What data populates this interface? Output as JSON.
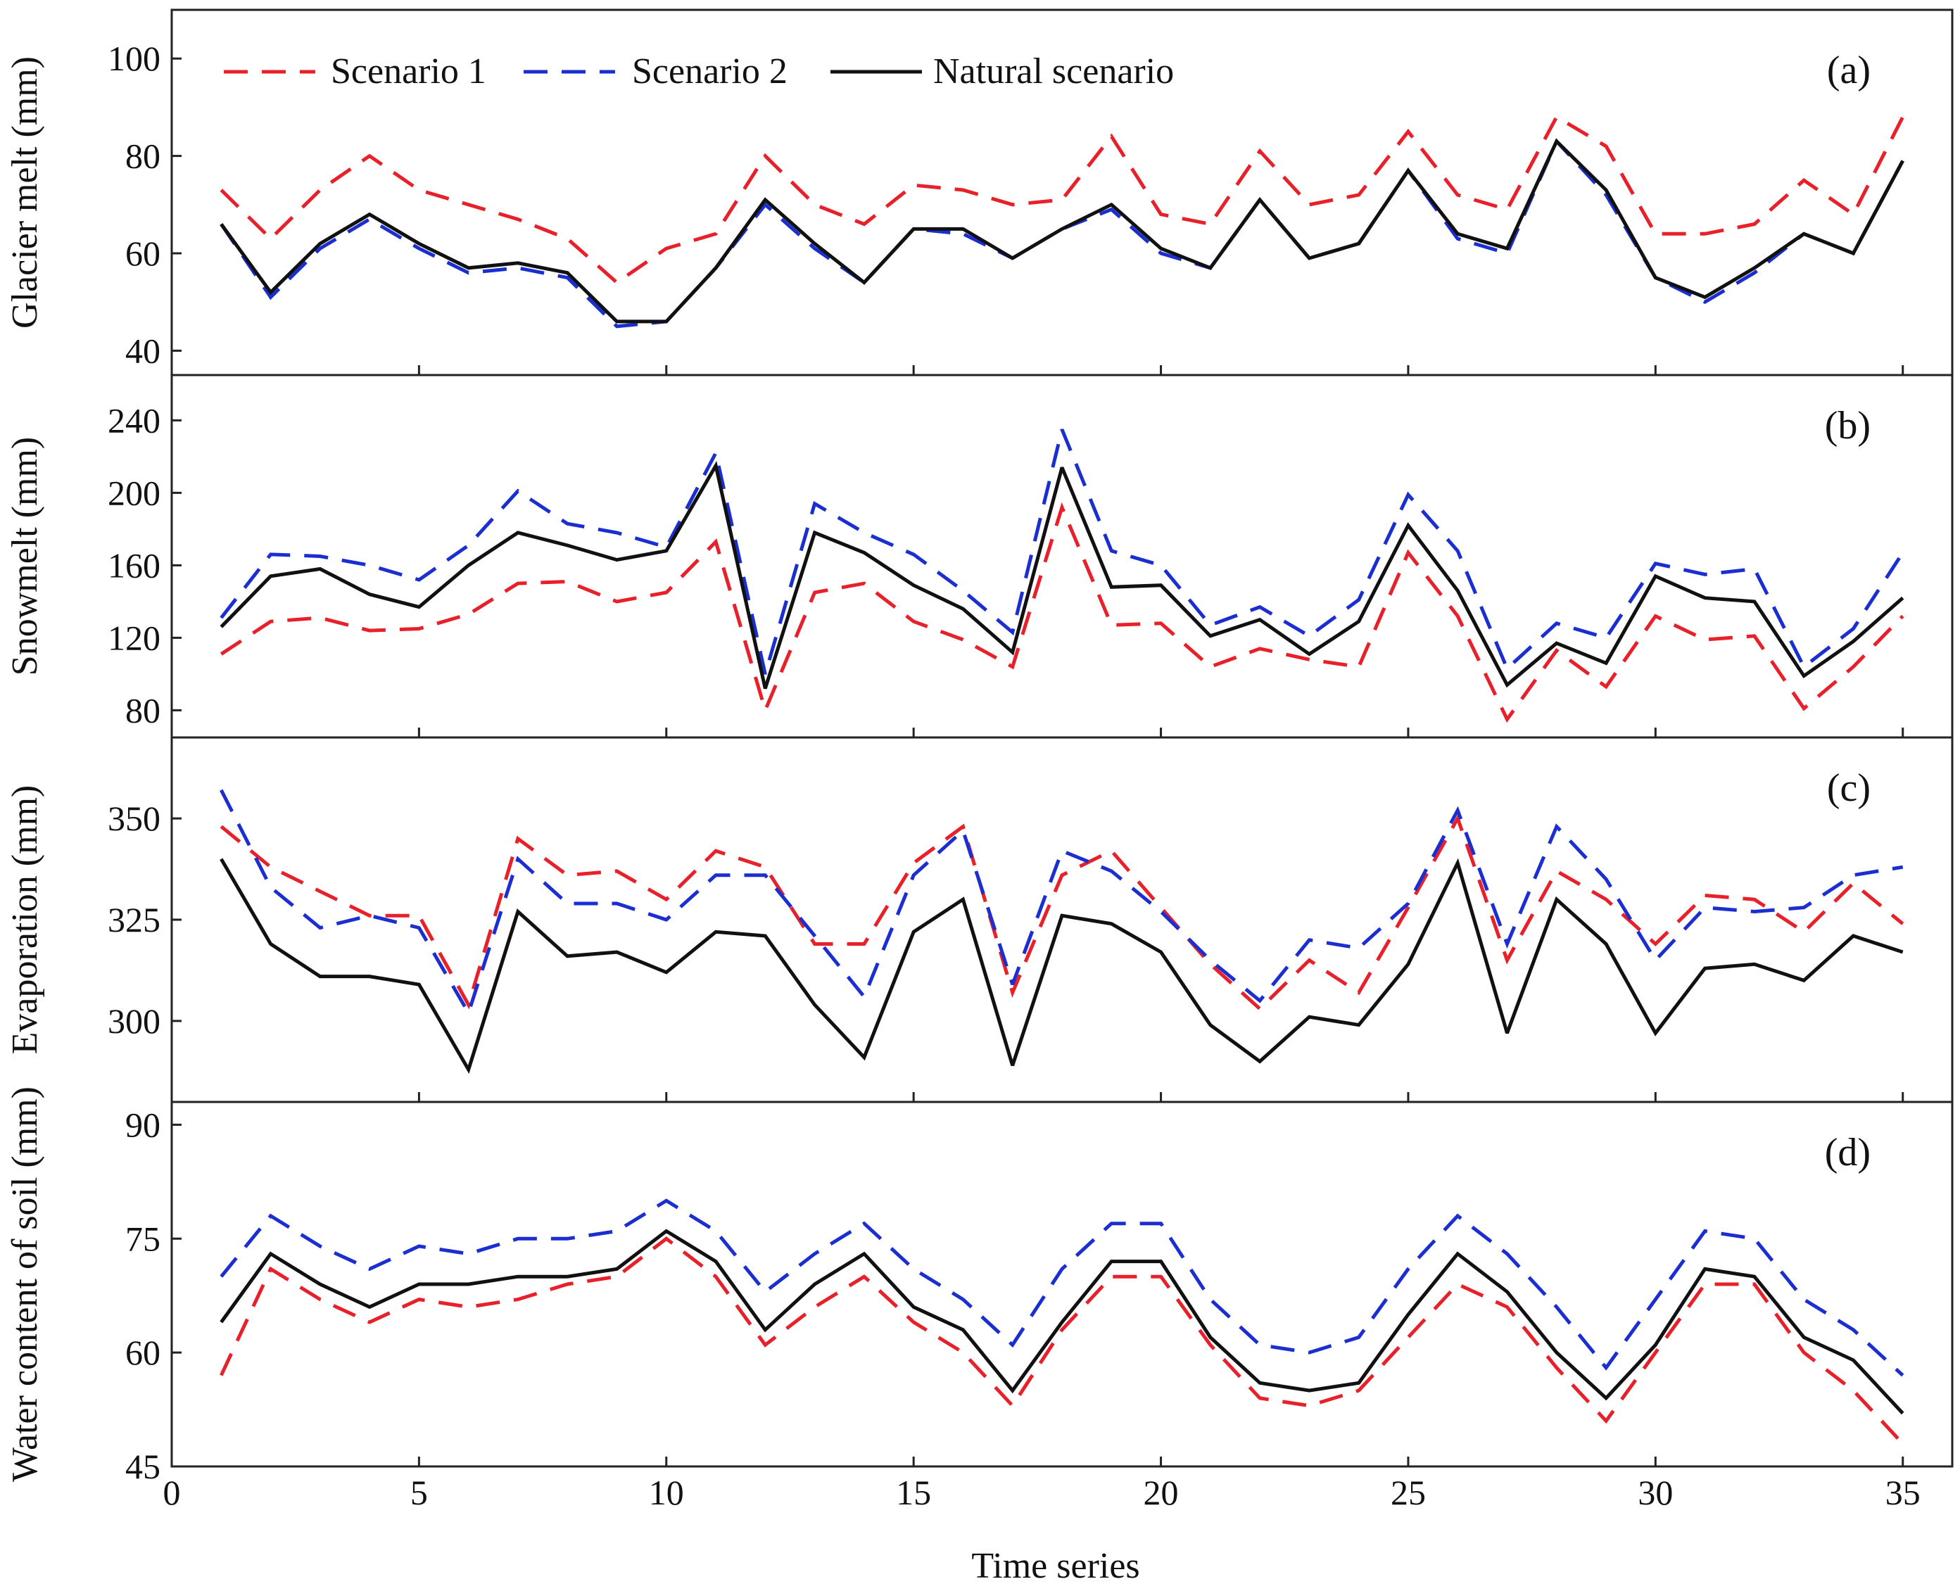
{
  "colors": {
    "scenario1": "#e8202a",
    "scenario2": "#1b2fd1",
    "natural": "#111111",
    "axis": "#222222"
  },
  "legend": {
    "items": [
      "Scenario 1",
      "Scenario 2",
      "Natural scenario"
    ]
  },
  "chart_data": {
    "type": "line",
    "xlabel": "Time series",
    "xlim": [
      0,
      36
    ],
    "xticks": [
      0,
      5,
      10,
      15,
      20,
      25,
      30,
      35
    ],
    "x": [
      1,
      2,
      3,
      4,
      5,
      6,
      7,
      8,
      9,
      10,
      11,
      12,
      13,
      14,
      15,
      16,
      17,
      18,
      19,
      20,
      21,
      22,
      23,
      24,
      25,
      26,
      27,
      28,
      29,
      30,
      31,
      32,
      33,
      34,
      35
    ],
    "panels": [
      {
        "label": "(a)",
        "ylabel": "Glacier melt (mm)",
        "ylim": [
          35,
          110
        ],
        "yticks": [
          40,
          60,
          80,
          100
        ],
        "series": [
          {
            "name": "Scenario 1",
            "style": "dashed",
            "values": [
              73,
              63,
              73,
              80,
              73,
              70,
              67,
              63,
              54,
              61,
              64,
              80,
              70,
              66,
              74,
              73,
              70,
              71,
              84,
              68,
              66,
              81,
              70,
              72,
              85,
              72,
              69,
              88,
              82,
              64,
              64,
              66,
              75,
              68,
              88
            ]
          },
          {
            "name": "Scenario 2",
            "style": "dashed",
            "values": [
              66,
              51,
              61,
              67,
              61,
              56,
              57,
              55,
              45,
              46,
              57,
              70,
              61,
              54,
              65,
              64,
              59,
              65,
              69,
              60,
              57,
              71,
              59,
              62,
              77,
              63,
              60,
              83,
              72,
              55,
              50,
              56,
              64,
              60,
              79
            ]
          },
          {
            "name": "Natural scenario",
            "style": "solid",
            "values": [
              66,
              52,
              62,
              68,
              62,
              57,
              58,
              56,
              46,
              46,
              57,
              71,
              62,
              54,
              65,
              65,
              59,
              65,
              70,
              61,
              57,
              71,
              59,
              62,
              77,
              64,
              61,
              83,
              73,
              55,
              51,
              57,
              64,
              60,
              79
            ]
          }
        ]
      },
      {
        "label": "(b)",
        "ylabel": "Snowmelt (mm)",
        "ylim": [
          65,
          265
        ],
        "yticks": [
          80,
          120,
          160,
          200,
          240
        ],
        "series": [
          {
            "name": "Scenario 1",
            "style": "dashed",
            "values": [
              111,
              129,
              131,
              124,
              125,
              133,
              150,
              151,
              140,
              145,
              173,
              80,
              145,
              150,
              129,
              119,
              104,
              192,
              127,
              128,
              104,
              114,
              108,
              104,
              167,
              132,
              75,
              113,
              93,
              132,
              119,
              121,
              81,
              104,
              132
            ]
          },
          {
            "name": "Scenario 2",
            "style": "dashed",
            "values": [
              131,
              166,
              165,
              160,
              152,
              171,
              201,
              183,
              178,
              170,
              222,
              100,
              194,
              178,
              166,
              146,
              123,
              235,
              168,
              160,
              127,
              137,
              121,
              141,
              199,
              168,
              103,
              128,
              120,
              161,
              155,
              158,
              104,
              125,
              167
            ]
          },
          {
            "name": "Natural scenario",
            "style": "solid",
            "values": [
              126,
              154,
              158,
              144,
              137,
              160,
              178,
              171,
              163,
              168,
              215,
              92,
              178,
              167,
              149,
              136,
              112,
              214,
              148,
              149,
              121,
              130,
              111,
              129,
              182,
              146,
              94,
              117,
              106,
              154,
              142,
              140,
              99,
              118,
              142
            ]
          }
        ]
      },
      {
        "label": "(c)",
        "ylabel": "Evaporation (mm)",
        "ylim": [
          280,
          370
        ],
        "yticks": [
          300,
          325,
          350
        ],
        "series": [
          {
            "name": "Scenario 1",
            "style": "dashed",
            "values": [
              348,
              338,
              332,
              326,
              326,
              304,
              345,
              336,
              337,
              330,
              342,
              338,
              319,
              319,
              339,
              348,
              307,
              336,
              342,
              328,
              314,
              303,
              315,
              307,
              328,
              350,
              315,
              337,
              330,
              319,
              331,
              330,
              322,
              334,
              324
            ]
          },
          {
            "name": "Scenario 2",
            "style": "dashed",
            "values": [
              357,
              333,
              323,
              326,
              323,
              302,
              340,
              329,
              329,
              325,
              336,
              336,
              321,
              306,
              336,
              347,
              309,
              342,
              337,
              327,
              315,
              305,
              320,
              318,
              329,
              352,
              319,
              348,
              335,
              315,
              328,
              327,
              328,
              336,
              338
            ]
          },
          {
            "name": "Natural scenario",
            "style": "solid",
            "values": [
              340,
              319,
              311,
              311,
              309,
              288,
              327,
              316,
              317,
              312,
              322,
              321,
              304,
              291,
              322,
              330,
              289,
              326,
              324,
              317,
              299,
              290,
              301,
              299,
              314,
              339,
              297,
              330,
              319,
              297,
              313,
              314,
              310,
              321,
              317
            ]
          }
        ]
      },
      {
        "label": "(d)",
        "ylabel": "Water content of soil (mm)",
        "ylim": [
          45,
          93
        ],
        "yticks": [
          45,
          60,
          75,
          90
        ],
        "series": [
          {
            "name": "Scenario 1",
            "style": "dashed",
            "values": [
              57,
              71,
              67,
              64,
              67,
              66,
              67,
              69,
              70,
              75,
              70,
              61,
              66,
              70,
              64,
              60,
              53,
              63,
              70,
              70,
              61,
              54,
              53,
              55,
              62,
              69,
              66,
              58,
              51,
              60,
              69,
              69,
              60,
              55,
              48
            ]
          },
          {
            "name": "Scenario 2",
            "style": "dashed",
            "values": [
              70,
              78,
              74,
              71,
              74,
              73,
              75,
              75,
              76,
              80,
              76,
              68,
              73,
              77,
              71,
              67,
              61,
              71,
              77,
              77,
              67,
              61,
              60,
              62,
              71,
              78,
              73,
              66,
              58,
              67,
              76,
              75,
              67,
              63,
              57
            ]
          },
          {
            "name": "Natural scenario",
            "style": "solid",
            "values": [
              64,
              73,
              69,
              66,
              69,
              69,
              70,
              70,
              71,
              76,
              72,
              63,
              69,
              73,
              66,
              63,
              55,
              64,
              72,
              72,
              62,
              56,
              55,
              56,
              65,
              73,
              68,
              60,
              54,
              61,
              71,
              70,
              62,
              59,
              52
            ]
          }
        ]
      }
    ]
  }
}
